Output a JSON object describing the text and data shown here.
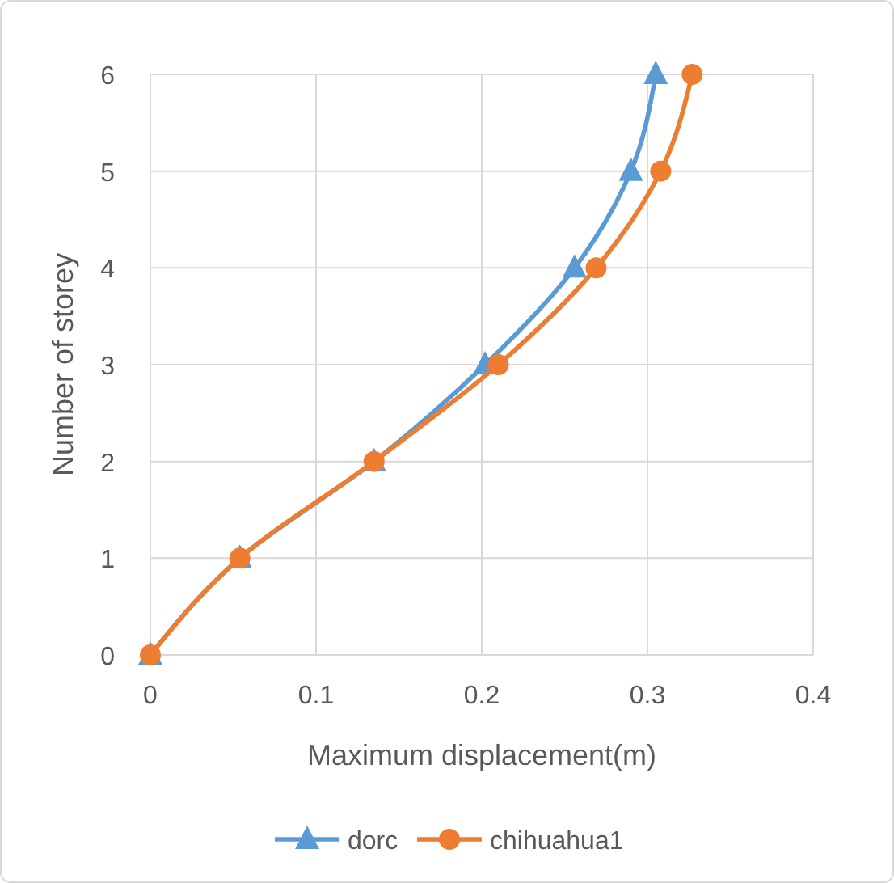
{
  "chart_data": {
    "type": "line",
    "xlabel": "Maximum displacement(m)",
    "ylabel": "Number of storey",
    "xlim": [
      0,
      0.4
    ],
    "xticks": [
      0,
      0.1,
      0.2,
      0.3,
      0.4
    ],
    "ylim": [
      0,
      6
    ],
    "yticks": [
      0,
      1,
      2,
      3,
      4,
      5,
      6
    ],
    "grid": true,
    "legend": "bottom",
    "series": [
      {
        "name": "dorc",
        "color": "#5b9bd5",
        "marker": "triangle",
        "x": [
          0,
          0.054,
          0.135,
          0.202,
          0.256,
          0.29,
          0.305
        ],
        "values": [
          0,
          1,
          2,
          3,
          4,
          5,
          6
        ]
      },
      {
        "name": "chihuahua1",
        "color": "#ed7d31",
        "marker": "circle",
        "x": [
          0,
          0.054,
          0.135,
          0.21,
          0.269,
          0.308,
          0.327
        ],
        "values": [
          0,
          1,
          2,
          3,
          4,
          5,
          6
        ]
      }
    ]
  }
}
